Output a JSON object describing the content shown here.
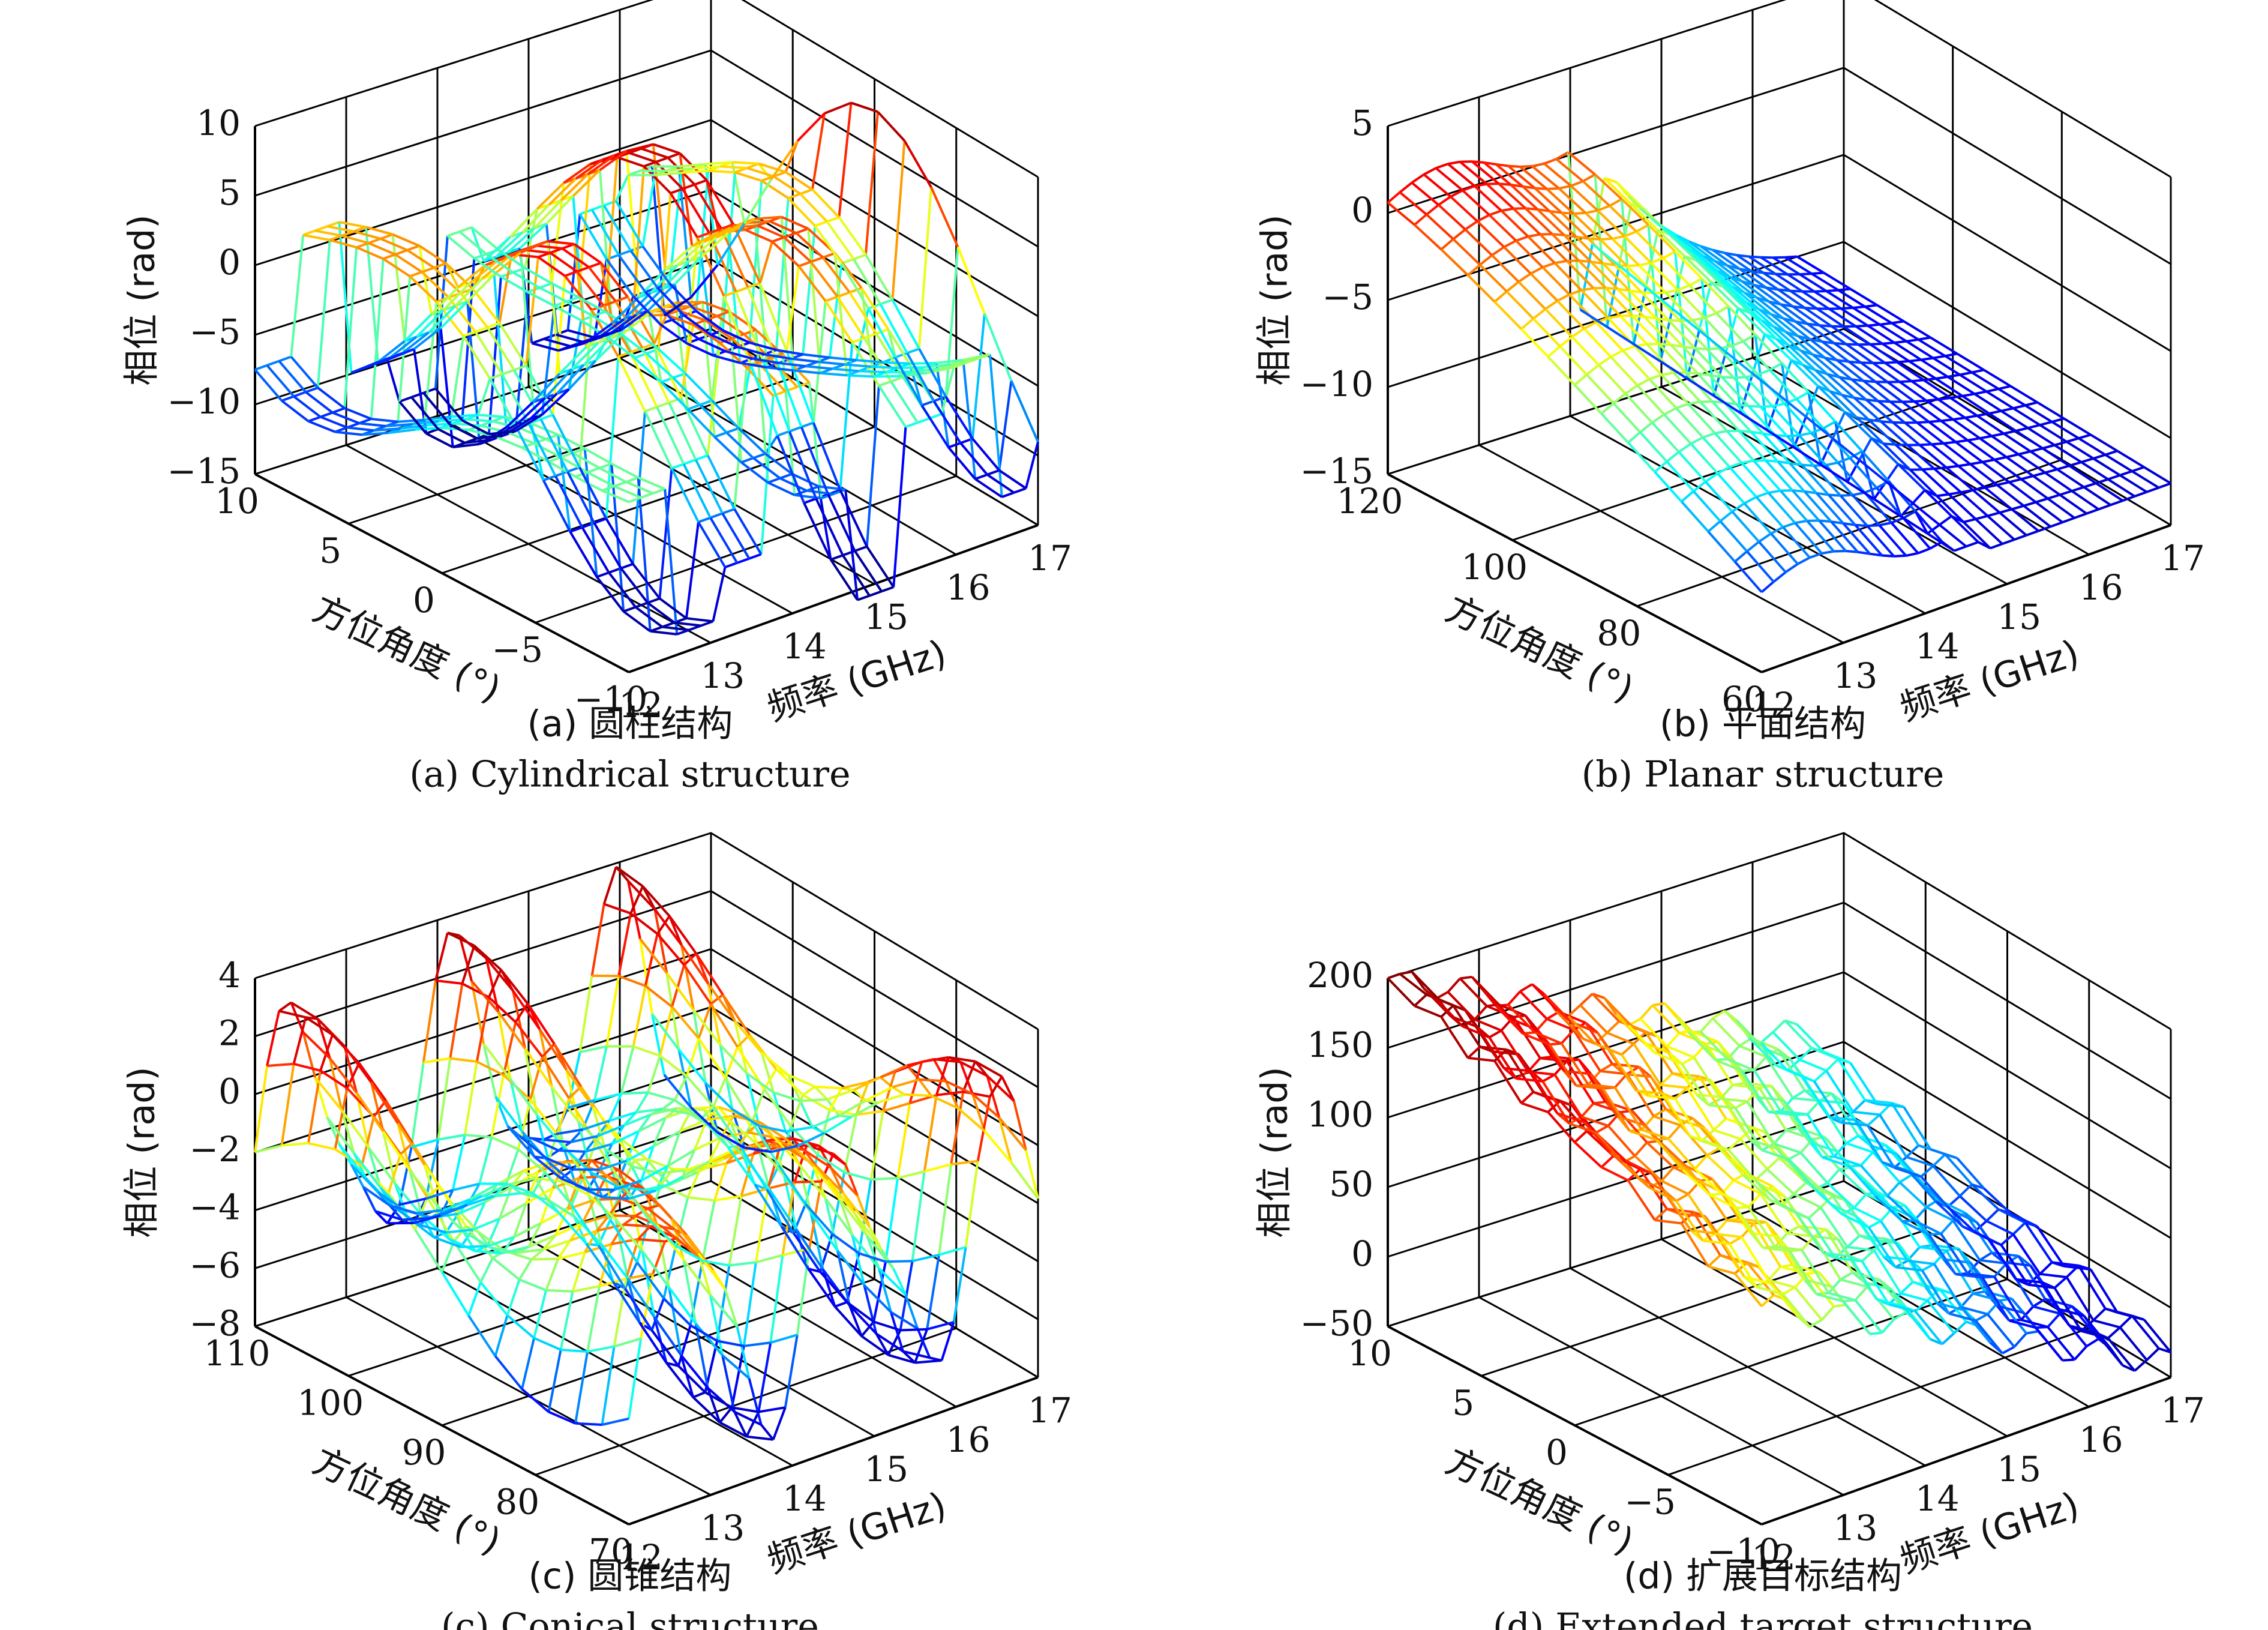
{
  "colormap": [
    "#00008f",
    "#0000ff",
    "#00ffff",
    "#ffff00",
    "#ff0000",
    "#800000"
  ],
  "axis_color": "#000000",
  "chart_data": [
    {
      "id": "a",
      "type": "surface",
      "caption_cn": "(a) 圆柱结构",
      "caption_en": "(a) Cylindrical structure",
      "xlabel": "频率 (GHz)",
      "ylabel": "方位角度 (°)",
      "zlabel": "相位 (rad)",
      "x_ticks": [
        "12",
        "13",
        "14",
        "15",
        "16",
        "17"
      ],
      "y_ticks": [
        "10",
        "5",
        "0",
        "−5",
        "−10"
      ],
      "z_ticks": [
        "10",
        "5",
        "0",
        "−5",
        "−10",
        "−15"
      ],
      "xlim": [
        12,
        17
      ],
      "ylim": [
        -10,
        10
      ],
      "zlim": [
        -15,
        10
      ],
      "grid": true
    },
    {
      "id": "b",
      "type": "surface",
      "caption_cn": "(b) 平面结构",
      "caption_en": "(b) Planar structure",
      "xlabel": "频率 (GHz)",
      "ylabel": "方位角度 (°)",
      "zlabel": "相位 (rad)",
      "x_ticks": [
        "12",
        "13",
        "14",
        "15",
        "16",
        "17"
      ],
      "y_ticks": [
        "120",
        "100",
        "80",
        "60"
      ],
      "z_ticks": [
        "5",
        "0",
        "−5",
        "−10",
        "−15"
      ],
      "xlim": [
        12,
        17
      ],
      "ylim": [
        60,
        120
      ],
      "zlim": [
        -15,
        5
      ],
      "grid": true
    },
    {
      "id": "c",
      "type": "surface",
      "caption_cn": "(c) 圆锥结构",
      "caption_en": "(c) Conical structure",
      "xlabel": "频率 (GHz)",
      "ylabel": "方位角度 (°)",
      "zlabel": "相位 (rad)",
      "x_ticks": [
        "12",
        "13",
        "14",
        "15",
        "16",
        "17"
      ],
      "y_ticks": [
        "110",
        "100",
        "90",
        "80",
        "70"
      ],
      "z_ticks": [
        "4",
        "2",
        "0",
        "−2",
        "−4",
        "−6",
        "−8"
      ],
      "xlim": [
        12,
        17
      ],
      "ylim": [
        70,
        110
      ],
      "zlim": [
        -8,
        4
      ],
      "grid": true
    },
    {
      "id": "d",
      "type": "surface",
      "caption_cn": "(d) 扩展目标结构",
      "caption_en": "(d) Extended target structure",
      "xlabel": "频率 (GHz)",
      "ylabel": "方位角度 (°)",
      "zlabel": "相位 (rad)",
      "x_ticks": [
        "12",
        "13",
        "14",
        "15",
        "16",
        "17"
      ],
      "y_ticks": [
        "10",
        "5",
        "0",
        "−5",
        "−10"
      ],
      "z_ticks": [
        "200",
        "150",
        "100",
        "50",
        "0",
        "−50"
      ],
      "xlim": [
        12,
        17
      ],
      "ylim": [
        -10,
        10
      ],
      "zlim": [
        -50,
        200
      ],
      "grid": true
    }
  ]
}
